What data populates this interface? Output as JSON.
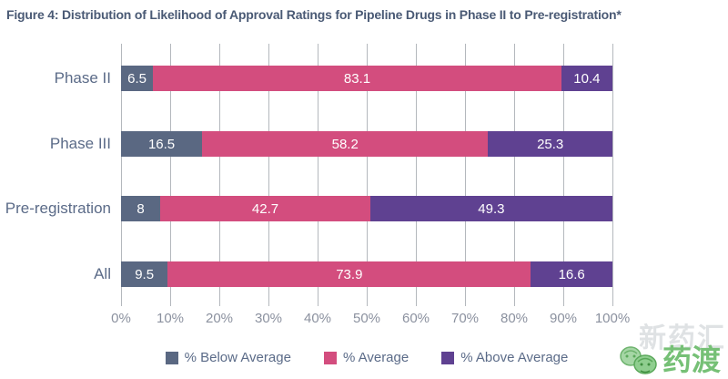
{
  "title": "Figure 4: Distribution of Likelihood of Approval Ratings for Pipeline Drugs in Phase II to Pre-registration*",
  "chart_data": {
    "type": "bar",
    "orientation": "horizontal",
    "stacked": true,
    "title": "Figure 4: Distribution of Likelihood of Approval Ratings for Pipeline Drugs in Phase II to Pre-registration*",
    "categories": [
      "Phase II",
      "Phase III",
      "Pre-registration",
      "All"
    ],
    "series": [
      {
        "name": "% Below Average",
        "color": "#5a6882",
        "values": [
          6.5,
          16.5,
          8,
          9.5
        ]
      },
      {
        "name": "% Average",
        "color": "#d34d7e",
        "values": [
          83.1,
          58.2,
          42.7,
          73.9
        ]
      },
      {
        "name": "% Above Average",
        "color": "#5f4191",
        "values": [
          10.4,
          25.3,
          49.3,
          16.6
        ]
      }
    ],
    "x_ticks": [
      "0%",
      "10%",
      "20%",
      "30%",
      "40%",
      "50%",
      "60%",
      "70%",
      "80%",
      "90%",
      "100%"
    ],
    "xlim": [
      0,
      100
    ],
    "grid": "vertical",
    "value_labels": "inside-white",
    "legend_position": "bottom"
  },
  "watermark": {
    "ghost_text": "新药汇",
    "logo_text": "药渡",
    "logo_color": "#76c076",
    "leaf_icon": "two-green-leaves"
  }
}
